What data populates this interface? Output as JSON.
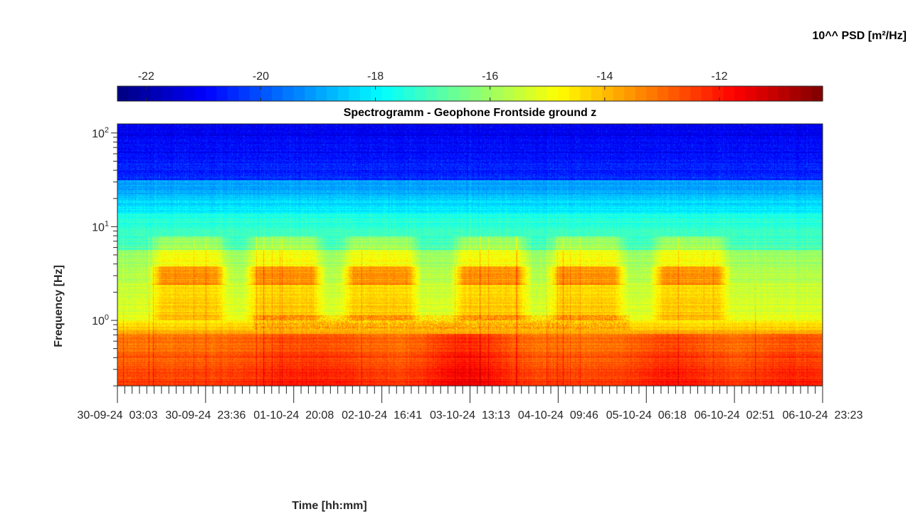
{
  "chart_data": {
    "type": "heatmap",
    "title": "Spectrogramm - Geophone Frontside ground z",
    "xlabel": "Time [hh:mm]",
    "ylabel": "Frequency [Hz]",
    "colorbar_label": "10^^ PSD [m²/Hz]",
    "colormap": "jet",
    "yscale": "log",
    "ylim": [
      0.2,
      125
    ],
    "clim": [
      -22.5,
      -10.2
    ],
    "colorbar_ticks": [
      -22,
      -20,
      -18,
      -16,
      -14,
      -12
    ],
    "colorbar_tick_labels": [
      "-22",
      "-20",
      "-18",
      "-16",
      "-14",
      "-12"
    ],
    "y_ticks": [
      {
        "base": "10",
        "exp": "2"
      },
      {
        "base": "10",
        "exp": "1"
      },
      {
        "base": "10",
        "exp": "0"
      }
    ],
    "x_tick_labels": [
      "30-09-24  03:03",
      "30-09-24  23:36",
      "01-10-24  20:08",
      "02-10-24  16:41",
      "03-10-24  13:13",
      "04-10-24  09:46",
      "05-10-24  06:18",
      "06-10-24  02:51",
      "06-10-24  23:23"
    ],
    "description_of_z": "Approximate log10 PSD: ~-21 above 30 Hz, ~-17.5 at 5-15 Hz, ~-15 at 1-5 Hz with ~-13.5 daytime bursts near 3 Hz, ~-12.5 below 0.7 Hz"
  }
}
